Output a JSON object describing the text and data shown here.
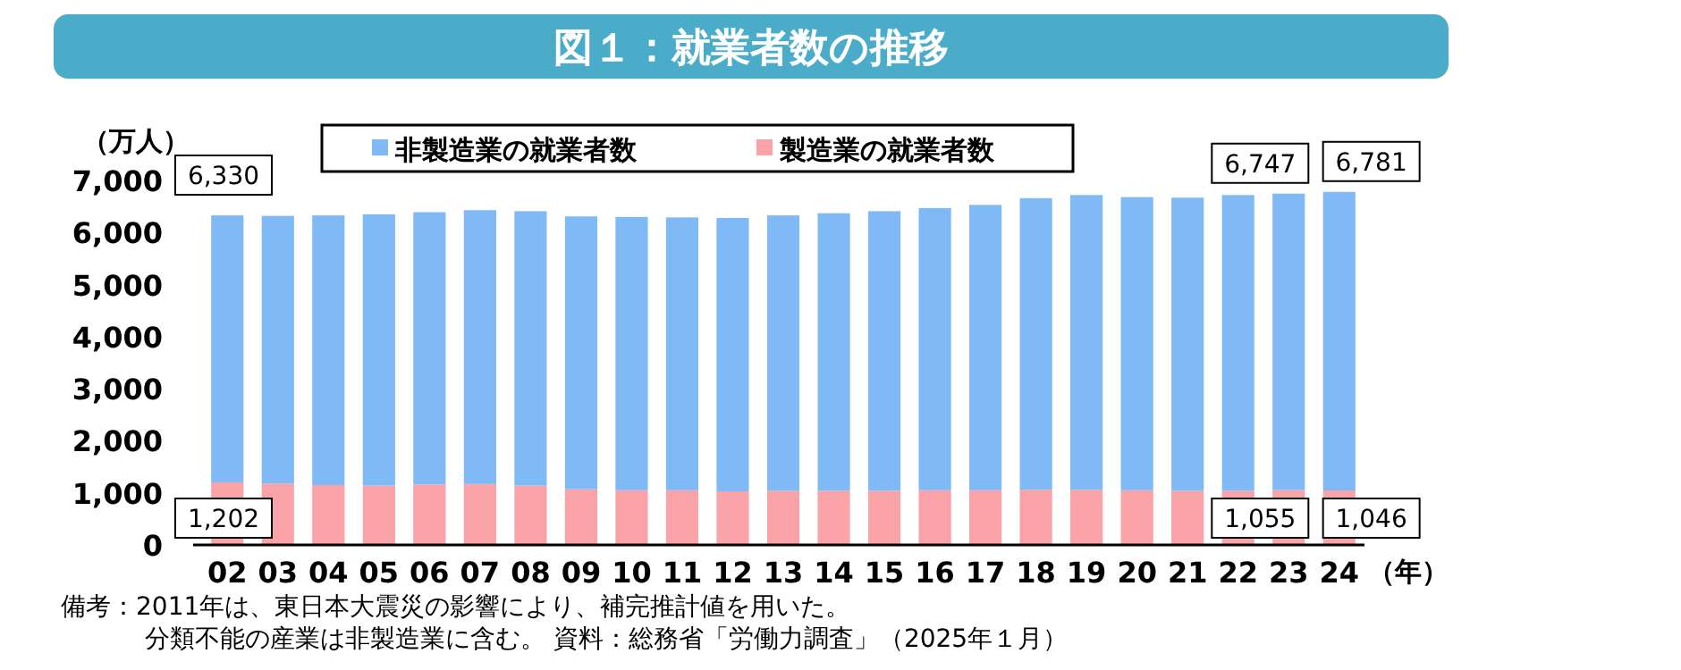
{
  "chart_data": {
    "type": "bar",
    "title": "図１：就業者数の推移",
    "ylabel": "（万人）",
    "xlabel": "（年）",
    "stacked": true,
    "legend": "top",
    "categories": [
      "02",
      "03",
      "04",
      "05",
      "06",
      "07",
      "08",
      "09",
      "10",
      "11",
      "12",
      "13",
      "14",
      "15",
      "16",
      "17",
      "18",
      "19",
      "20",
      "21",
      "22",
      "23",
      "24"
    ],
    "series": [
      {
        "name": "製造業の就業者数",
        "color": "#f9a3a8",
        "values": [
          1202,
          1180,
          1150,
          1140,
          1160,
          1170,
          1140,
          1070,
          1050,
          1050,
          1030,
          1040,
          1040,
          1040,
          1050,
          1050,
          1060,
          1060,
          1050,
          1040,
          1040,
          1055,
          1046
        ],
        "value_labels": [
          "1,202",
          null,
          null,
          null,
          null,
          null,
          null,
          null,
          null,
          null,
          null,
          null,
          null,
          null,
          null,
          null,
          null,
          null,
          null,
          null,
          null,
          "1,055",
          "1,046"
        ]
      },
      {
        "name": "非製造業の就業者数",
        "color": "#7fbaf7",
        "values": [
          5128,
          5140,
          5180,
          5210,
          5230,
          5260,
          5270,
          5240,
          5250,
          5240,
          5250,
          5290,
          5330,
          5370,
          5420,
          5480,
          5600,
          5660,
          5630,
          5630,
          5680,
          5692,
          5735
        ]
      }
    ],
    "totals": [
      "6,330",
      null,
      null,
      null,
      null,
      null,
      null,
      null,
      null,
      null,
      null,
      null,
      null,
      null,
      null,
      null,
      null,
      null,
      null,
      null,
      null,
      "6,747",
      "6,781"
    ],
    "ylim": [
      0,
      7000
    ],
    "yticks": [
      0,
      {
        "value": 1000,
        "label": "1,000"
      },
      {
        "value": 2000,
        "label": "2,000"
      },
      {
        "value": 3000,
        "label": "3,000"
      },
      {
        "value": 4000,
        "label": "4,000"
      },
      {
        "value": 5000,
        "label": "5,000"
      },
      {
        "value": 6000,
        "label": "6,000"
      },
      {
        "value": 7000,
        "label": "7,000"
      }
    ],
    "annotations": [
      "備考：2011年は、東日本大震災の影響により、補完推計値を用いた。",
      "分類不能の産業は非製造業に含む。 資料：総務省「労働力調査」（2025年１月）"
    ]
  }
}
